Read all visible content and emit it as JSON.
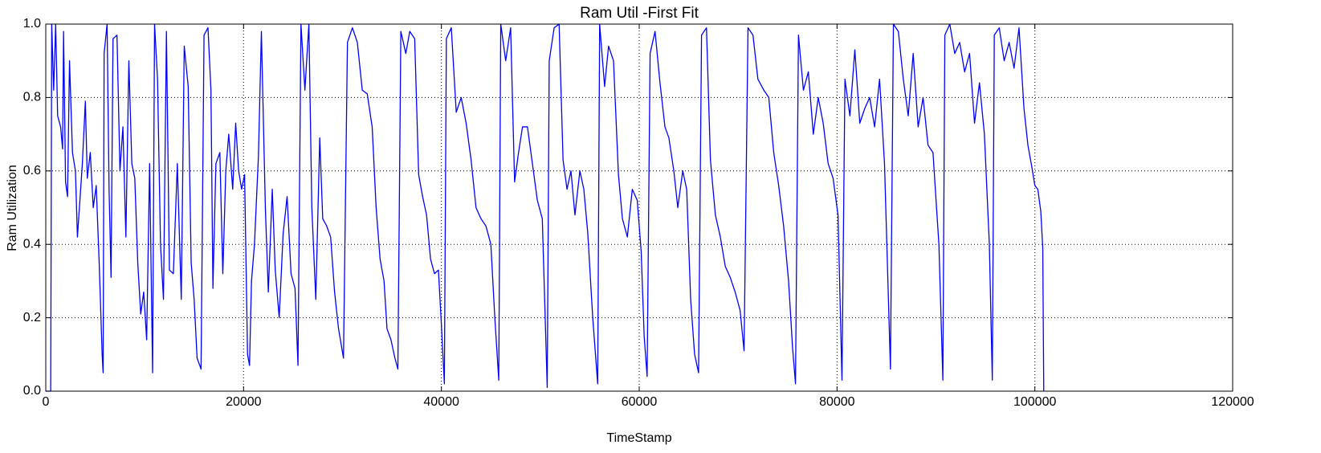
{
  "chart_data": {
    "type": "line",
    "title": "Ram Util -First Fit",
    "x_label": "TimeStamp",
    "y_label": "Ram Utilization",
    "x": [
      0,
      500,
      600,
      800,
      1000,
      1200,
      1500,
      1700,
      1800,
      2000,
      2200,
      2400,
      2700,
      3000,
      3200,
      3400,
      3700,
      4000,
      4200,
      4500,
      4800,
      5100,
      5400,
      5700,
      5800,
      5900,
      6200,
      6400,
      6600,
      6800,
      7200,
      7500,
      7800,
      8100,
      8400,
      8700,
      9000,
      9300,
      9600,
      9900,
      10200,
      10500,
      10800,
      11000,
      11300,
      11600,
      11900,
      12200,
      12500,
      12900,
      13300,
      13700,
      14000,
      14400,
      14700,
      15000,
      15300,
      15700,
      16000,
      16400,
      16700,
      16900,
      17200,
      17600,
      17900,
      18200,
      18500,
      18900,
      19200,
      19500,
      19800,
      20100,
      20400,
      20600,
      20800,
      21100,
      21500,
      21800,
      22200,
      22500,
      22900,
      23200,
      23600,
      24000,
      24400,
      24800,
      25200,
      25500,
      25800,
      26200,
      26600,
      26900,
      27300,
      27700,
      28000,
      28400,
      28800,
      29200,
      29600,
      30100,
      30500,
      31000,
      31500,
      32000,
      32500,
      33000,
      33400,
      33800,
      34200,
      34500,
      34900,
      35300,
      35600,
      35900,
      36400,
      36800,
      37300,
      37700,
      38100,
      38500,
      38900,
      39300,
      39700,
      40000,
      40300,
      40500,
      41000,
      41500,
      42000,
      42500,
      43000,
      43500,
      44000,
      44500,
      45000,
      45400,
      45800,
      46000,
      46500,
      47000,
      47400,
      47800,
      48200,
      48700,
      49200,
      49700,
      50200,
      50700,
      50900,
      51400,
      51900,
      52300,
      52700,
      53100,
      53500,
      54000,
      54400,
      54800,
      55300,
      55800,
      56000,
      56500,
      56900,
      57400,
      57900,
      58300,
      58800,
      59300,
      59800,
      60200,
      60500,
      60800,
      61100,
      61600,
      62100,
      62600,
      63000,
      63500,
      63900,
      64400,
      64800,
      65200,
      65600,
      66000,
      66300,
      66800,
      67200,
      67700,
      68200,
      68700,
      69200,
      69700,
      70200,
      70600,
      71000,
      71500,
      72000,
      72600,
      73100,
      73600,
      74100,
      74600,
      75100,
      75500,
      75800,
      76100,
      76600,
      77100,
      77600,
      78100,
      78600,
      79100,
      79600,
      80100,
      80500,
      80800,
      81300,
      81800,
      82300,
      82800,
      83300,
      83800,
      84300,
      84800,
      85400,
      85700,
      86200,
      86700,
      87200,
      87700,
      88200,
      88700,
      89200,
      89700,
      90300,
      90700,
      90900,
      91400,
      91900,
      92400,
      92900,
      93400,
      93900,
      94400,
      94900,
      95400,
      95700,
      95900,
      96400,
      96900,
      97400,
      97900,
      98400,
      98900,
      99300,
      99700,
      100000,
      100300,
      100600,
      100800,
      100900
    ],
    "series": [
      {
        "name": "Ram Utilization",
        "color": "#0000ff",
        "values": [
          0,
          0,
          1.0,
          0.82,
          1.0,
          0.75,
          0.72,
          0.66,
          0.98,
          0.57,
          0.53,
          0.9,
          0.65,
          0.6,
          0.42,
          0.5,
          0.62,
          0.79,
          0.58,
          0.65,
          0.5,
          0.56,
          0.35,
          0.1,
          0.05,
          0.92,
          1.0,
          0.55,
          0.31,
          0.96,
          0.97,
          0.6,
          0.72,
          0.42,
          0.9,
          0.62,
          0.58,
          0.35,
          0.21,
          0.27,
          0.14,
          0.62,
          0.05,
          1.0,
          0.85,
          0.4,
          0.25,
          0.98,
          0.33,
          0.32,
          0.62,
          0.25,
          0.94,
          0.83,
          0.35,
          0.25,
          0.09,
          0.06,
          0.97,
          0.99,
          0.82,
          0.28,
          0.62,
          0.65,
          0.32,
          0.6,
          0.7,
          0.55,
          0.73,
          0.6,
          0.55,
          0.59,
          0.1,
          0.07,
          0.3,
          0.4,
          0.64,
          0.98,
          0.5,
          0.27,
          0.55,
          0.33,
          0.2,
          0.43,
          0.53,
          0.32,
          0.28,
          0.07,
          1.0,
          0.82,
          1.0,
          0.5,
          0.25,
          0.69,
          0.47,
          0.45,
          0.42,
          0.27,
          0.17,
          0.09,
          0.95,
          0.99,
          0.95,
          0.82,
          0.81,
          0.72,
          0.5,
          0.36,
          0.3,
          0.17,
          0.14,
          0.09,
          0.06,
          0.98,
          0.92,
          0.98,
          0.96,
          0.59,
          0.53,
          0.48,
          0.36,
          0.32,
          0.33,
          0.18,
          0.02,
          0.96,
          0.99,
          0.76,
          0.8,
          0.73,
          0.63,
          0.5,
          0.47,
          0.45,
          0.4,
          0.2,
          0.03,
          1.0,
          0.9,
          0.99,
          0.57,
          0.65,
          0.72,
          0.72,
          0.62,
          0.52,
          0.47,
          0.01,
          0.9,
          0.99,
          1.0,
          0.63,
          0.55,
          0.6,
          0.48,
          0.6,
          0.55,
          0.43,
          0.2,
          0.02,
          1.0,
          0.83,
          0.94,
          0.9,
          0.59,
          0.47,
          0.42,
          0.55,
          0.52,
          0.38,
          0.15,
          0.04,
          0.92,
          0.98,
          0.84,
          0.72,
          0.69,
          0.6,
          0.5,
          0.6,
          0.55,
          0.25,
          0.1,
          0.05,
          0.97,
          0.99,
          0.63,
          0.48,
          0.42,
          0.34,
          0.31,
          0.27,
          0.22,
          0.11,
          0.99,
          0.97,
          0.85,
          0.82,
          0.8,
          0.65,
          0.56,
          0.45,
          0.3,
          0.12,
          0.02,
          0.97,
          0.82,
          0.87,
          0.7,
          0.8,
          0.73,
          0.62,
          0.58,
          0.48,
          0.03,
          0.85,
          0.75,
          0.93,
          0.73,
          0.77,
          0.8,
          0.72,
          0.85,
          0.62,
          0.06,
          1.0,
          0.98,
          0.85,
          0.75,
          0.92,
          0.72,
          0.8,
          0.67,
          0.65,
          0.4,
          0.03,
          0.97,
          1.0,
          0.92,
          0.95,
          0.87,
          0.92,
          0.73,
          0.84,
          0.7,
          0.4,
          0.03,
          0.97,
          0.99,
          0.9,
          0.95,
          0.88,
          0.99,
          0.77,
          0.67,
          0.61,
          0.56,
          0.55,
          0.49,
          0.39,
          0
        ]
      }
    ],
    "xlim": [
      0,
      120000
    ],
    "ylim": [
      0,
      1
    ],
    "xticks": [
      0,
      20000,
      40000,
      60000,
      80000,
      100000,
      120000
    ],
    "yticks": [
      {
        "value": 0,
        "label": "0.0"
      },
      0.2,
      0.4,
      0.6,
      0.8,
      {
        "value": 1,
        "label": "1.0"
      }
    ],
    "grid": true
  }
}
